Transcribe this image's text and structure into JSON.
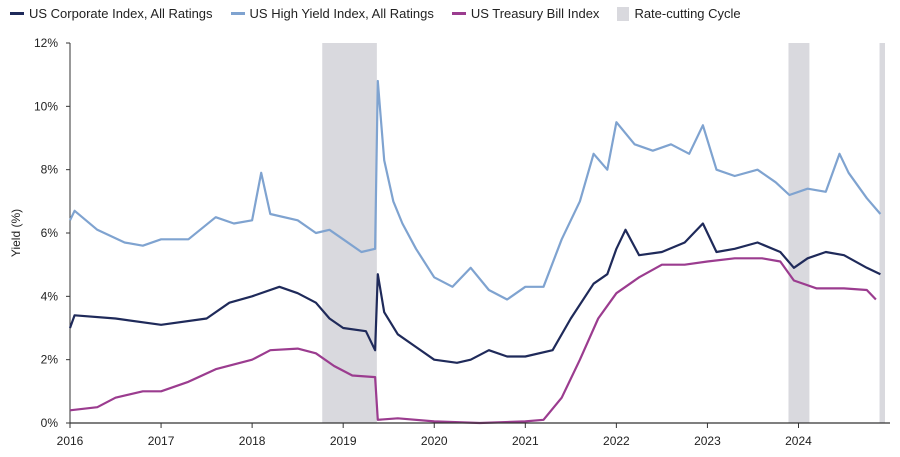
{
  "chart_data": {
    "type": "line",
    "title": "",
    "xlabel": "",
    "ylabel": "Yield (%)",
    "xlim": [
      2016,
      2024.95
    ],
    "ylim": [
      0,
      12
    ],
    "x_ticks": [
      "2016",
      "2017",
      "2018",
      "2019",
      "2020",
      "2021",
      "2022",
      "2023",
      "2024"
    ],
    "y_ticks": [
      "0%",
      "2%",
      "4%",
      "6%",
      "8%",
      "10%",
      "12%"
    ],
    "legend_position": "top",
    "shaded_periods": {
      "name": "Rate-cutting Cycle",
      "color": "#d9d9de",
      "ranges": [
        [
          2018.77,
          2019.37
        ],
        [
          2023.89,
          2024.12
        ],
        [
          2024.89,
          2024.95
        ]
      ]
    },
    "series": [
      {
        "name": "US Corporate Index, All Ratings",
        "color": "#1f2a5a",
        "points": [
          [
            2016.0,
            3.0
          ],
          [
            2016.05,
            3.4
          ],
          [
            2016.5,
            3.3
          ],
          [
            2017.0,
            3.1
          ],
          [
            2017.5,
            3.3
          ],
          [
            2017.75,
            3.8
          ],
          [
            2018.0,
            4.0
          ],
          [
            2018.3,
            4.3
          ],
          [
            2018.5,
            4.1
          ],
          [
            2018.7,
            3.8
          ],
          [
            2018.85,
            3.3
          ],
          [
            2019.0,
            3.0
          ],
          [
            2019.25,
            2.9
          ],
          [
            2019.35,
            2.3
          ],
          [
            2019.38,
            4.7
          ],
          [
            2019.45,
            3.5
          ],
          [
            2019.6,
            2.8
          ],
          [
            2019.8,
            2.4
          ],
          [
            2020.0,
            2.0
          ],
          [
            2020.25,
            1.9
          ],
          [
            2020.4,
            2.0
          ],
          [
            2020.6,
            2.3
          ],
          [
            2020.8,
            2.1
          ],
          [
            2021.0,
            2.1
          ],
          [
            2021.3,
            2.3
          ],
          [
            2021.5,
            3.3
          ],
          [
            2021.75,
            4.4
          ],
          [
            2021.9,
            4.7
          ],
          [
            2022.0,
            5.5
          ],
          [
            2022.1,
            6.1
          ],
          [
            2022.25,
            5.3
          ],
          [
            2022.5,
            5.4
          ],
          [
            2022.75,
            5.7
          ],
          [
            2022.95,
            6.3
          ],
          [
            2023.1,
            5.4
          ],
          [
            2023.3,
            5.5
          ],
          [
            2023.55,
            5.7
          ],
          [
            2023.8,
            5.4
          ],
          [
            2023.95,
            4.9
          ],
          [
            2024.1,
            5.2
          ],
          [
            2024.3,
            5.4
          ],
          [
            2024.5,
            5.3
          ],
          [
            2024.75,
            4.9
          ],
          [
            2024.9,
            4.7
          ]
        ]
      },
      {
        "name": "US High Yield Index, All Ratings",
        "color": "#7fa3d0",
        "points": [
          [
            2016.0,
            6.4
          ],
          [
            2016.05,
            6.7
          ],
          [
            2016.3,
            6.1
          ],
          [
            2016.6,
            5.7
          ],
          [
            2016.8,
            5.6
          ],
          [
            2017.0,
            5.8
          ],
          [
            2017.3,
            5.8
          ],
          [
            2017.6,
            6.5
          ],
          [
            2017.8,
            6.3
          ],
          [
            2018.0,
            6.4
          ],
          [
            2018.1,
            7.9
          ],
          [
            2018.2,
            6.6
          ],
          [
            2018.5,
            6.4
          ],
          [
            2018.7,
            6.0
          ],
          [
            2018.85,
            6.1
          ],
          [
            2019.0,
            5.8
          ],
          [
            2019.2,
            5.4
          ],
          [
            2019.35,
            5.5
          ],
          [
            2019.38,
            10.8
          ],
          [
            2019.45,
            8.3
          ],
          [
            2019.55,
            7.0
          ],
          [
            2019.65,
            6.3
          ],
          [
            2019.8,
            5.5
          ],
          [
            2020.0,
            4.6
          ],
          [
            2020.2,
            4.3
          ],
          [
            2020.4,
            4.9
          ],
          [
            2020.6,
            4.2
          ],
          [
            2020.8,
            3.9
          ],
          [
            2021.0,
            4.3
          ],
          [
            2021.2,
            4.3
          ],
          [
            2021.4,
            5.8
          ],
          [
            2021.6,
            7.0
          ],
          [
            2021.75,
            8.5
          ],
          [
            2021.9,
            8.0
          ],
          [
            2022.0,
            9.5
          ],
          [
            2022.2,
            8.8
          ],
          [
            2022.4,
            8.6
          ],
          [
            2022.6,
            8.8
          ],
          [
            2022.8,
            8.5
          ],
          [
            2022.95,
            9.4
          ],
          [
            2023.1,
            8.0
          ],
          [
            2023.3,
            7.8
          ],
          [
            2023.55,
            8.0
          ],
          [
            2023.75,
            7.6
          ],
          [
            2023.9,
            7.2
          ],
          [
            2024.1,
            7.4
          ],
          [
            2024.3,
            7.3
          ],
          [
            2024.45,
            8.5
          ],
          [
            2024.55,
            7.9
          ],
          [
            2024.75,
            7.1
          ],
          [
            2024.9,
            6.6
          ]
        ]
      },
      {
        "name": "US Treasury Bill Index",
        "color": "#9b3c8f",
        "points": [
          [
            2016.0,
            0.4
          ],
          [
            2016.3,
            0.5
          ],
          [
            2016.5,
            0.8
          ],
          [
            2016.8,
            1.0
          ],
          [
            2017.0,
            1.0
          ],
          [
            2017.3,
            1.3
          ],
          [
            2017.6,
            1.7
          ],
          [
            2018.0,
            2.0
          ],
          [
            2018.2,
            2.3
          ],
          [
            2018.5,
            2.35
          ],
          [
            2018.7,
            2.2
          ],
          [
            2018.9,
            1.8
          ],
          [
            2019.1,
            1.5
          ],
          [
            2019.35,
            1.45
          ],
          [
            2019.38,
            0.1
          ],
          [
            2019.6,
            0.15
          ],
          [
            2020.0,
            0.05
          ],
          [
            2020.5,
            0.0
          ],
          [
            2021.0,
            0.05
          ],
          [
            2021.2,
            0.1
          ],
          [
            2021.4,
            0.8
          ],
          [
            2021.6,
            2.0
          ],
          [
            2021.8,
            3.3
          ],
          [
            2022.0,
            4.1
          ],
          [
            2022.25,
            4.6
          ],
          [
            2022.5,
            5.0
          ],
          [
            2022.75,
            5.0
          ],
          [
            2023.0,
            5.1
          ],
          [
            2023.3,
            5.2
          ],
          [
            2023.6,
            5.2
          ],
          [
            2023.8,
            5.1
          ],
          [
            2023.95,
            4.5
          ],
          [
            2024.2,
            4.25
          ],
          [
            2024.5,
            4.25
          ],
          [
            2024.75,
            4.2
          ],
          [
            2024.85,
            3.9
          ]
        ]
      }
    ]
  }
}
